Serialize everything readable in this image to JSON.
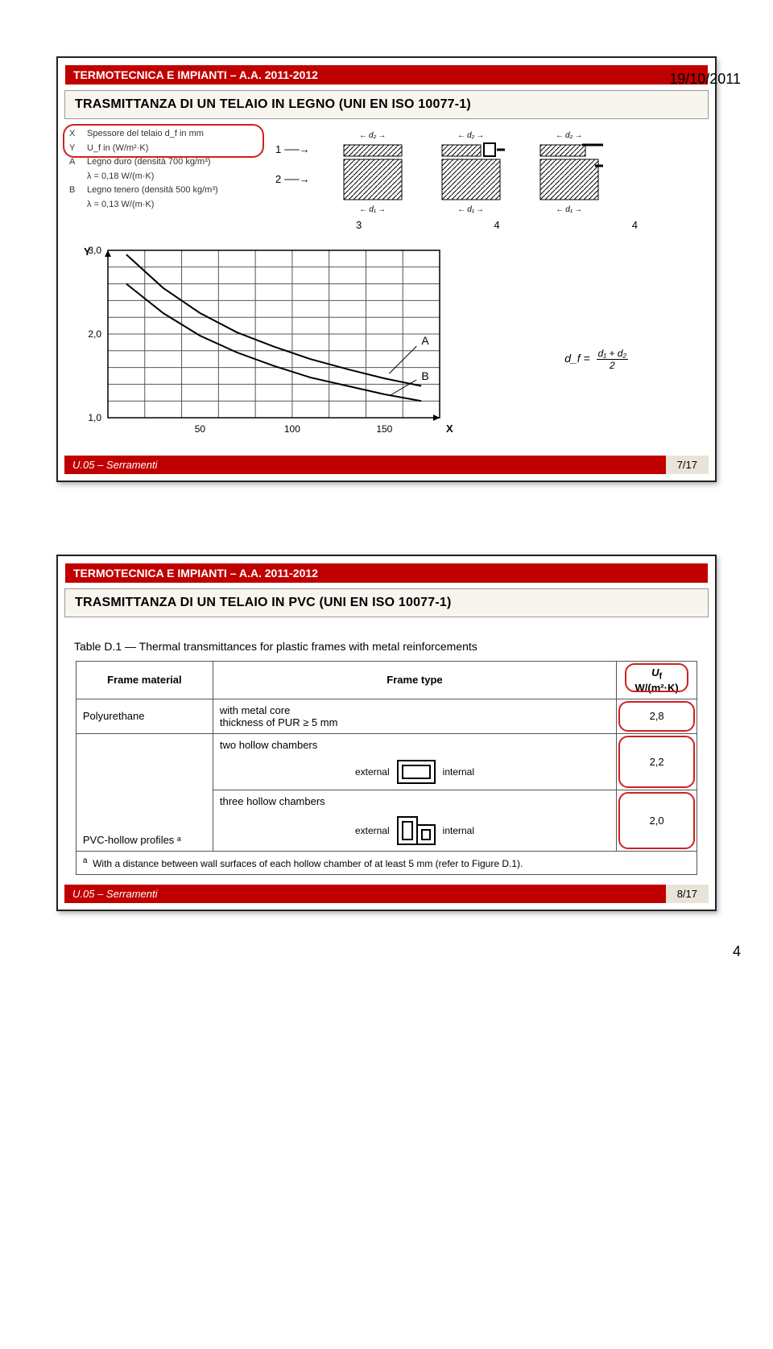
{
  "page": {
    "date": "19/10/2011",
    "number": "4"
  },
  "slide1": {
    "header": "TERMOTECNICA E IMPIANTI – A.A. 2011-2012",
    "title": "TRASMITTANZA DI UN TELAIO IN LEGNO (UNI EN ISO 10077-1)",
    "legend": {
      "X": "Spessore del telaio d_f in mm",
      "Y": "U_f in (W/m²·K)",
      "A": "Legno duro (densità 700 kg/m³)",
      "A_sub": "λ = 0,18 W/(m·K)",
      "B": "Legno tenero (densità 500 kg/m³)",
      "B_sub": "λ = 0,13 W/(m·K)"
    },
    "section_nums": [
      "1",
      "2"
    ],
    "below_nums": [
      "3",
      "4",
      "4"
    ],
    "dims": {
      "d1": "d₁",
      "d2": "d₂"
    },
    "formula": {
      "lhs": "d_f =",
      "num": "d₁ + d₂",
      "den": "2"
    },
    "chart": {
      "y_label": "Y",
      "x_label": "X",
      "y_ticks": [
        "3,0",
        "2,0",
        "1,0"
      ],
      "x_ticks": [
        "50",
        "100",
        "150"
      ],
      "curve_labels": [
        "A",
        "B"
      ],
      "background": "#ffffff",
      "grid_color": "#555555",
      "curve_color": "#000000",
      "xlim": [
        0,
        180
      ],
      "ylim": [
        1.0,
        3.0
      ],
      "curveA": [
        [
          10,
          2.95
        ],
        [
          30,
          2.55
        ],
        [
          50,
          2.25
        ],
        [
          70,
          2.02
        ],
        [
          90,
          1.85
        ],
        [
          110,
          1.7
        ],
        [
          130,
          1.58
        ],
        [
          150,
          1.47
        ],
        [
          170,
          1.38
        ]
      ],
      "curveB": [
        [
          10,
          2.6
        ],
        [
          30,
          2.25
        ],
        [
          50,
          1.98
        ],
        [
          70,
          1.78
        ],
        [
          90,
          1.62
        ],
        [
          110,
          1.48
        ],
        [
          130,
          1.38
        ],
        [
          150,
          1.28
        ],
        [
          170,
          1.2
        ]
      ]
    },
    "footer_left": "U.05 – Serramenti",
    "footer_right": "7/17"
  },
  "slide2": {
    "header": "TERMOTECNICA E IMPIANTI – A.A. 2011-2012",
    "title": "TRASMITTANZA DI UN TELAIO IN PVC (UNI EN ISO 10077-1)",
    "table": {
      "caption": "Table D.1 — Thermal transmittances for plastic frames with metal reinforcements",
      "headers": [
        "Frame material",
        "Frame type",
        "U_f\nW/(m²·K)"
      ],
      "rows": [
        {
          "material": "Polyurethane",
          "type": "with metal core\nthickness of PUR ≥ 5 mm",
          "uf": "2,8"
        },
        {
          "material": "",
          "type": "two hollow chambers",
          "diagram": "two",
          "ext": "external",
          "int": "internal",
          "uf": "2,2"
        },
        {
          "material": "PVC-hollow profiles ᵃ",
          "type": "three hollow chambers",
          "diagram": "three",
          "ext": "external",
          "int": "internal",
          "uf": "2,0"
        }
      ],
      "footnote_key": "a",
      "footnote": "With a distance between wall surfaces of each hollow chamber of at least 5 mm (refer to Figure D.1)."
    },
    "footer_left": "U.05 – Serramenti",
    "footer_right": "8/17"
  }
}
